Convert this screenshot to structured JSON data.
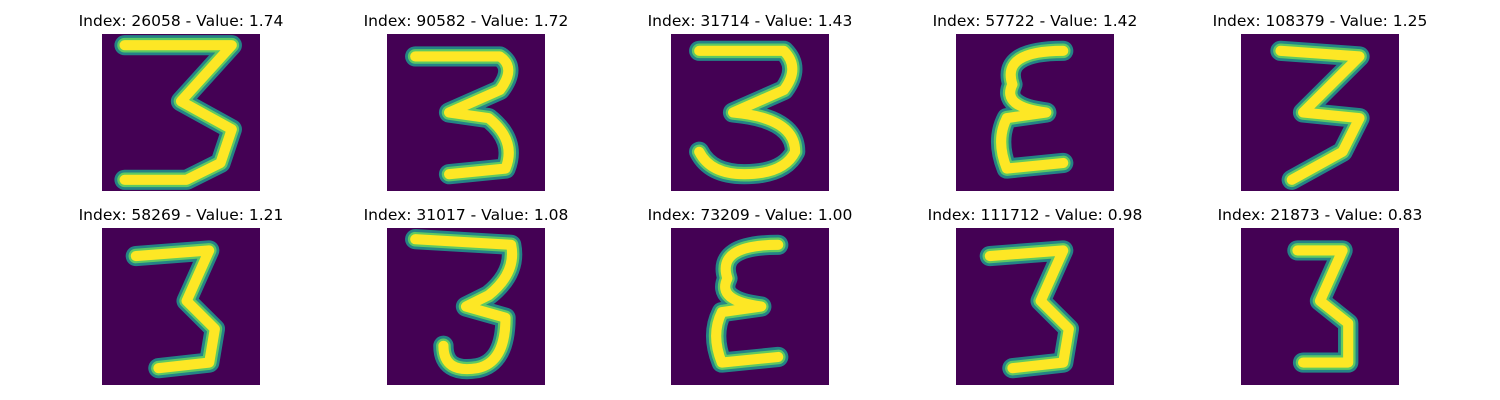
{
  "colors": {
    "background": "#440154",
    "stroke_core": "#fde725",
    "stroke_edge": "#21918c",
    "stroke_mid": "#5ec962"
  },
  "panels": [
    {
      "title": "Index: 26058 - Value: 1.74",
      "digit": "3",
      "style": "wide-top"
    },
    {
      "title": "Index: 90582 - Value: 1.72",
      "digit": "3",
      "style": "round"
    },
    {
      "title": "Index: 31714 - Value: 1.43",
      "digit": "3",
      "style": "round-small"
    },
    {
      "title": "Index: 57722 - Value: 1.42",
      "digit": "3",
      "style": "epsilon"
    },
    {
      "title": "Index: 108379 - Value: 1.25",
      "digit": "3",
      "style": "zigzag"
    },
    {
      "title": "Index: 58269 - Value: 1.21",
      "digit": "3",
      "style": "flat-top"
    },
    {
      "title": "Index: 31017 - Value: 1.08",
      "digit": "3",
      "style": "curled"
    },
    {
      "title": "Index: 73209 - Value: 1.00",
      "digit": "3",
      "style": "epsilon"
    },
    {
      "title": "Index: 111712 - Value: 0.98",
      "digit": "3",
      "style": "flat-top"
    },
    {
      "title": "Index: 21873 - Value: 0.83",
      "digit": "3",
      "style": "narrow"
    }
  ]
}
